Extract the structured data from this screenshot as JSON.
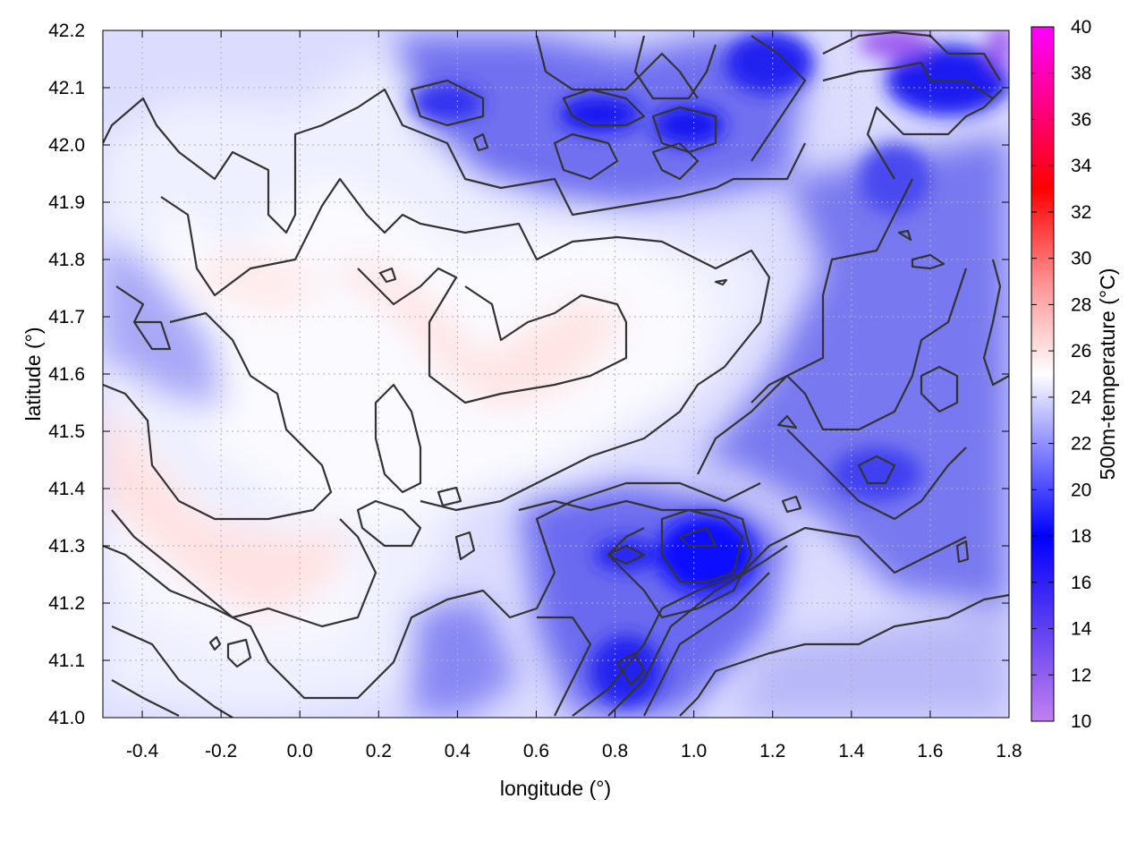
{
  "chart_data": {
    "type": "heatmap",
    "title": "",
    "xlabel": "longitude (°)",
    "ylabel": "latitude (°)",
    "colorbar_label": "500m-temperature (°C)",
    "xlim": [
      -0.5,
      1.8
    ],
    "ylim": [
      41.0,
      42.2
    ],
    "clim": [
      10,
      40
    ],
    "x_ticks": [
      "-0.4",
      "-0.2",
      "0.0",
      "0.2",
      "0.4",
      "0.6",
      "0.8",
      "1.0",
      "1.2",
      "1.4",
      "1.6",
      "1.8"
    ],
    "y_ticks": [
      "41.0",
      "41.1",
      "41.2",
      "41.3",
      "41.4",
      "41.5",
      "41.6",
      "41.7",
      "41.8",
      "41.9",
      "42.0",
      "42.1",
      "42.2"
    ],
    "colorbar_ticks": [
      "10",
      "12",
      "14",
      "16",
      "18",
      "20",
      "22",
      "24",
      "26",
      "28",
      "30",
      "32",
      "34",
      "36",
      "38",
      "40"
    ],
    "colormap": [
      {
        "value": 10,
        "color": "#c080f0"
      },
      {
        "value": 14,
        "color": "#6040f0"
      },
      {
        "value": 18,
        "color": "#0000ff"
      },
      {
        "value": 22,
        "color": "#9090ff"
      },
      {
        "value": 25,
        "color": "#ffffff"
      },
      {
        "value": 29,
        "color": "#ff9090"
      },
      {
        "value": 33,
        "color": "#ff0000"
      },
      {
        "value": 40,
        "color": "#ff00ff"
      }
    ],
    "grid": true,
    "legend": "none"
  }
}
